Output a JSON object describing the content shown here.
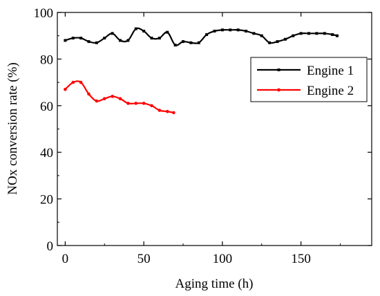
{
  "chart_data": {
    "type": "line",
    "title": "",
    "xlabel": "Aging time (h)",
    "ylabel": "NOx conversion rate (%)",
    "xlim": [
      -5,
      195
    ],
    "ylim": [
      0,
      100
    ],
    "xticks": [
      0,
      50,
      100,
      150
    ],
    "yticks": [
      0,
      20,
      40,
      60,
      80,
      100
    ],
    "grid": false,
    "legend_position": "top-right",
    "series": [
      {
        "name": "Engine 1",
        "color": "#000000",
        "x": [
          0,
          5,
          10,
          15,
          20,
          25,
          30,
          35,
          40,
          45,
          50,
          55,
          60,
          65,
          70,
          75,
          80,
          85,
          90,
          95,
          100,
          105,
          110,
          115,
          120,
          125,
          130,
          135,
          140,
          145,
          150,
          155,
          160,
          165,
          170,
          173
        ],
        "y": [
          88,
          89,
          89,
          87.5,
          87,
          89,
          91,
          88,
          88,
          93,
          92,
          89,
          89,
          91.5,
          86,
          87.5,
          87,
          87,
          90.5,
          92,
          92.5,
          92.5,
          92.5,
          92,
          91,
          90,
          87,
          87.5,
          88.5,
          90,
          91,
          91,
          91,
          91,
          90.5,
          90
        ]
      },
      {
        "name": "Engine 2",
        "color": "#ff0000",
        "x": [
          0,
          5,
          10,
          15,
          20,
          25,
          30,
          35,
          40,
          45,
          50,
          55,
          60,
          65,
          69
        ],
        "y": [
          67,
          70,
          70,
          65,
          62,
          63,
          64,
          63,
          61,
          61,
          61,
          60,
          58,
          57.5,
          57
        ]
      }
    ]
  }
}
